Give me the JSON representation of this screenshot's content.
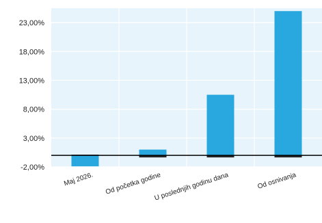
{
  "chart_data": {
    "type": "bar",
    "categories": [
      "Maj 2026.",
      "Od početka godine",
      "U poslednjih godinu dana",
      "Od osnivanja"
    ],
    "series": [
      {
        "values": [
          -1.9,
          1.0,
          10.5,
          25.0
        ]
      }
    ],
    "y_ticks": [
      "23,00%",
      "18,00%",
      "13,00%",
      "8,00%",
      "3,00%",
      "-2,00%"
    ],
    "y_tick_values": [
      23,
      18,
      13,
      8,
      3,
      -2
    ],
    "ylim": [
      -2,
      25.5
    ],
    "grid": true,
    "colors": {
      "bar": "#29a8e0",
      "plot_bg": "#e8f4fb",
      "grid": "#ffffff",
      "zero_line": "#000000",
      "text": "#222222"
    }
  }
}
